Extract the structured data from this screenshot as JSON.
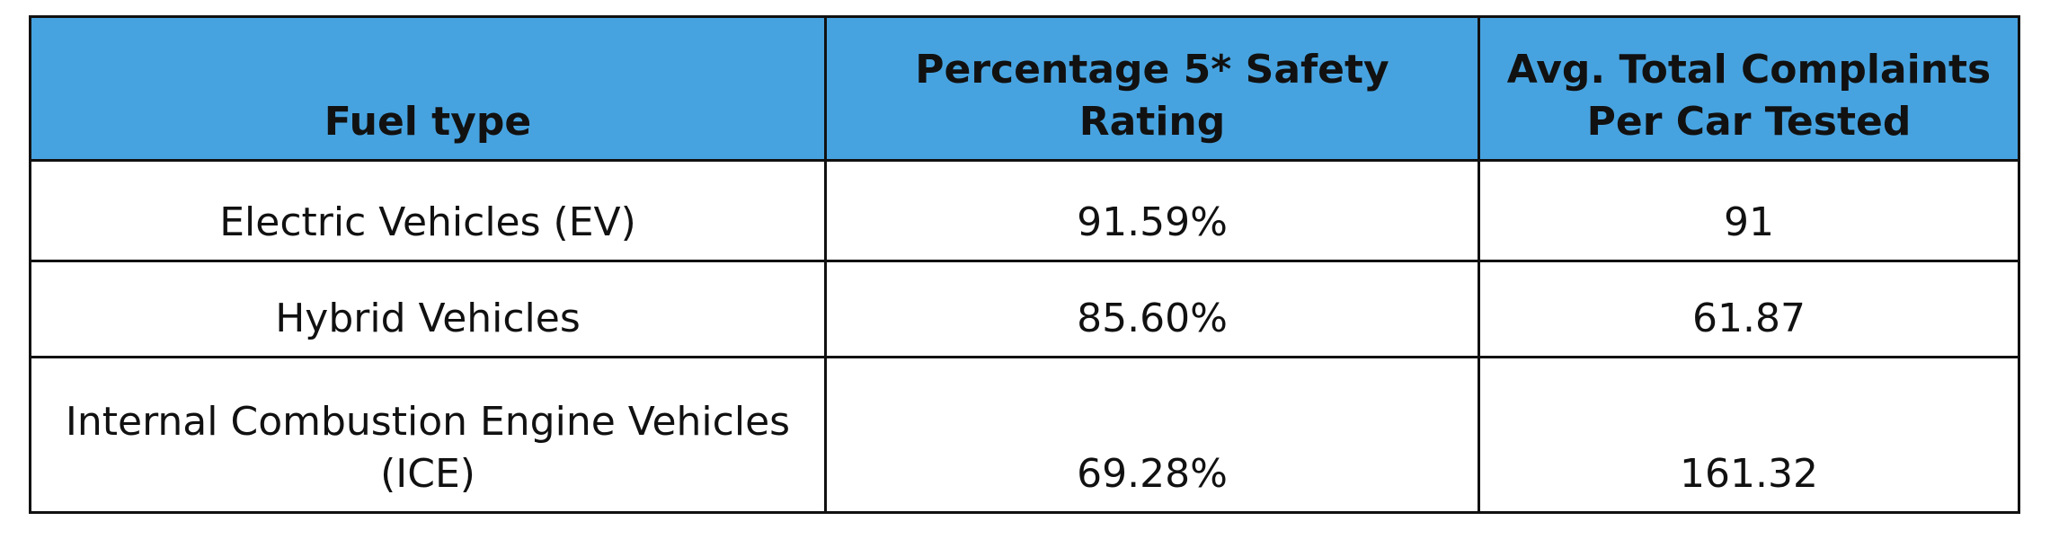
{
  "table": {
    "header": [
      "Fuel type",
      "Percentage 5* Safety Rating",
      "Avg. Total Complaints Per Car Tested"
    ],
    "rows": [
      [
        "Electric Vehicles (EV)",
        "91.59%",
        "91"
      ],
      [
        "Hybrid Vehicles",
        "85.60%",
        "61.87"
      ],
      [
        "Internal Combustion Engine Vehicles (ICE)",
        "69.28%",
        "161.32"
      ]
    ]
  }
}
